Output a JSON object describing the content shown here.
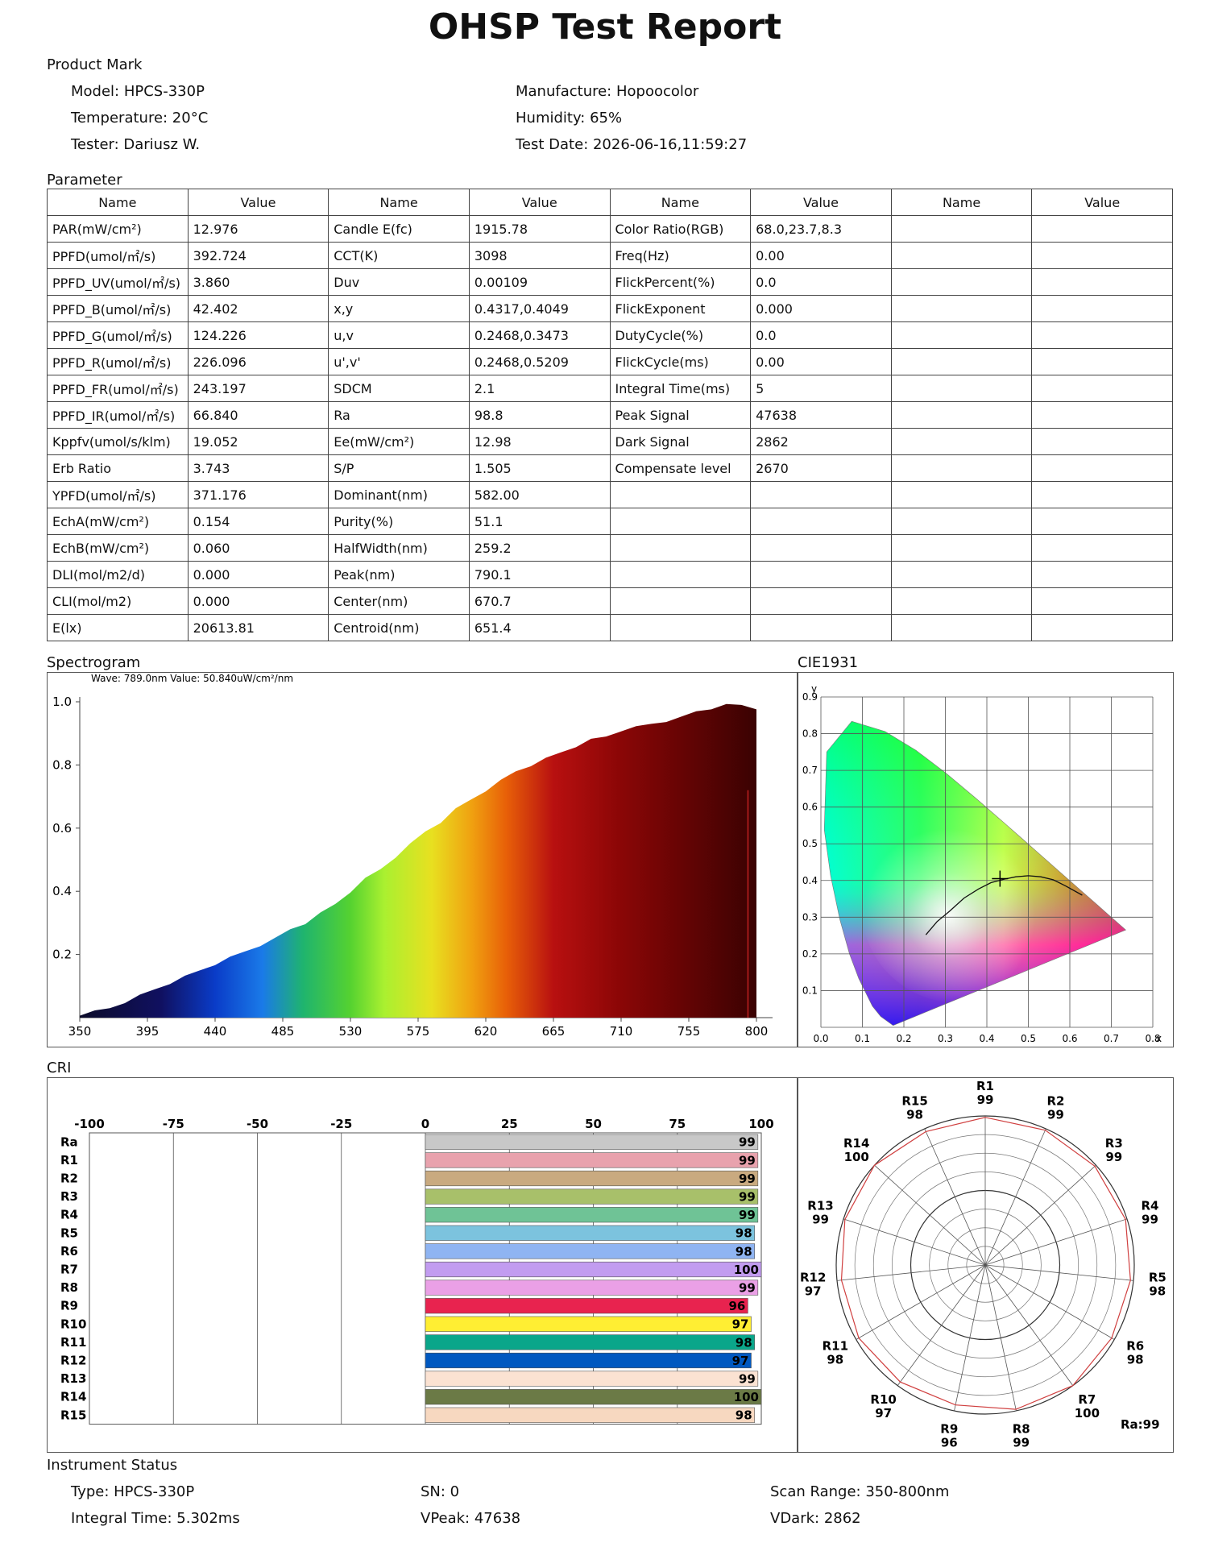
{
  "title": "OHSP Test Report",
  "product": {
    "heading": "Product Mark",
    "model": "Model: HPCS-330P",
    "manufacture": "Manufacture: Hopoocolor",
    "temperature": "Temperature: 20°C",
    "humidity": "Humidity: 65%",
    "tester": "Tester: Dariusz W.",
    "test_date": "Test Date: 2026-06-16,11:59:27"
  },
  "parameter": {
    "heading": "Parameter",
    "headers": [
      "Name",
      "Value",
      "Name",
      "Value",
      "Name",
      "Value",
      "Name",
      "Value"
    ],
    "rows": [
      [
        "PAR(mW/cm²)",
        "12.976",
        "Candle E(fc)",
        "1915.78",
        "Color Ratio(RGB)",
        "68.0,23.7,8.3",
        "",
        ""
      ],
      [
        "PPFD(umol/㎡/s)",
        "392.724",
        "CCT(K)",
        "3098",
        "Freq(Hz)",
        "0.00",
        "",
        ""
      ],
      [
        "PPFD_UV(umol/㎡/s)",
        "3.860",
        "Duv",
        "0.00109",
        "FlickPercent(%)",
        "0.0",
        "",
        ""
      ],
      [
        "PPFD_B(umol/㎡/s)",
        "42.402",
        "x,y",
        "0.4317,0.4049",
        "FlickExponent",
        "0.000",
        "",
        ""
      ],
      [
        "PPFD_G(umol/㎡/s)",
        "124.226",
        "u,v",
        "0.2468,0.3473",
        "DutyCycle(%)",
        "0.0",
        "",
        ""
      ],
      [
        "PPFD_R(umol/㎡/s)",
        "226.096",
        "u',v'",
        "0.2468,0.5209",
        "FlickCycle(ms)",
        "0.00",
        "",
        ""
      ],
      [
        "PPFD_FR(umol/㎡/s)",
        "243.197",
        "SDCM",
        "2.1",
        "Integral Time(ms)",
        "5",
        "",
        ""
      ],
      [
        "PPFD_IR(umol/㎡/s)",
        "66.840",
        "Ra",
        "98.8",
        "Peak Signal",
        "47638",
        "",
        ""
      ],
      [
        "Kppfv(umol/s/klm)",
        "19.052",
        "Ee(mW/cm²)",
        "12.98",
        "Dark Signal",
        "2862",
        "",
        ""
      ],
      [
        "Erb Ratio",
        "3.743",
        "S/P",
        "1.505",
        "Compensate level",
        "2670",
        "",
        ""
      ],
      [
        "YPFD(umol/㎡/s)",
        "371.176",
        "Dominant(nm)",
        "582.00",
        "",
        "",
        "",
        ""
      ],
      [
        "EchA(mW/cm²)",
        "0.154",
        "Purity(%)",
        "51.1",
        "",
        "",
        "",
        ""
      ],
      [
        "EchB(mW/cm²)",
        "0.060",
        "HalfWidth(nm)",
        "259.2",
        "",
        "",
        "",
        ""
      ],
      [
        "DLI(mol/m2/d)",
        "0.000",
        "Peak(nm)",
        "790.1",
        "",
        "",
        "",
        ""
      ],
      [
        "CLI(mol/m2)",
        "0.000",
        "Center(nm)",
        "670.7",
        "",
        "",
        "",
        ""
      ],
      [
        "E(lx)",
        "20613.81",
        "Centroid(nm)",
        "651.4",
        "",
        "",
        "",
        ""
      ]
    ]
  },
  "spectrogram": {
    "heading": "Spectrogram",
    "readout": "Wave: 789.0nm Value: 50.840uW/cm²/nm",
    "chart_data": {
      "type": "area",
      "xticks": [
        "350",
        "395",
        "440",
        "485",
        "530",
        "575",
        "620",
        "665",
        "710",
        "755",
        "800"
      ],
      "yticks": [
        "1.0",
        "0.8",
        "0.6",
        "0.4",
        "0.2"
      ],
      "xlim": [
        350,
        800
      ],
      "ylim": [
        0,
        1.0
      ],
      "x": [
        350,
        360,
        370,
        380,
        390,
        400,
        410,
        420,
        430,
        440,
        450,
        460,
        470,
        480,
        490,
        500,
        510,
        520,
        530,
        540,
        550,
        560,
        570,
        580,
        590,
        600,
        610,
        620,
        630,
        640,
        650,
        660,
        670,
        680,
        690,
        700,
        710,
        720,
        730,
        740,
        750,
        760,
        770,
        780,
        790,
        800
      ],
      "y": [
        0.01,
        0.02,
        0.03,
        0.05,
        0.07,
        0.09,
        0.11,
        0.13,
        0.15,
        0.17,
        0.19,
        0.21,
        0.23,
        0.25,
        0.28,
        0.3,
        0.33,
        0.36,
        0.4,
        0.44,
        0.47,
        0.51,
        0.55,
        0.59,
        0.62,
        0.66,
        0.69,
        0.72,
        0.75,
        0.78,
        0.8,
        0.82,
        0.84,
        0.86,
        0.88,
        0.89,
        0.91,
        0.92,
        0.93,
        0.94,
        0.95,
        0.97,
        0.98,
        0.99,
        0.99,
        0.98
      ],
      "marker_x": 789.0
    }
  },
  "cie": {
    "heading": "CIE1931",
    "chart_data": {
      "type": "scatter",
      "xlabel": "x",
      "ylabel": "y",
      "xticks": [
        "0.0",
        "0.1",
        "0.2",
        "0.3",
        "0.4",
        "0.5",
        "0.6",
        "0.7",
        "0.8"
      ],
      "yticks": [
        "0.9",
        "0.8",
        "0.7",
        "0.6",
        "0.5",
        "0.4",
        "0.3",
        "0.2",
        "0.1"
      ],
      "xlim": [
        0,
        0.8
      ],
      "ylim": [
        0,
        0.9
      ],
      "point": [
        0.4317,
        0.4049
      ]
    }
  },
  "cri": {
    "heading": "CRI",
    "chart_data": {
      "type": "bar",
      "xticks": [
        "-100",
        "-75",
        "-50",
        "-25",
        "0",
        "25",
        "50",
        "75",
        "100"
      ],
      "xlim": [
        -100,
        100
      ],
      "categories": [
        "Ra",
        "R1",
        "R2",
        "R3",
        "R4",
        "R5",
        "R6",
        "R7",
        "R8",
        "R9",
        "R10",
        "R11",
        "R12",
        "R13",
        "R14",
        "R15"
      ],
      "values": [
        99,
        99,
        99,
        99,
        99,
        98,
        98,
        100,
        99,
        96,
        97,
        98,
        97,
        99,
        100,
        98
      ],
      "colors": [
        "#c8c8c8",
        "#e8a2ad",
        "#c9aa80",
        "#a8c06a",
        "#6fc396",
        "#7cc3de",
        "#8fb4f2",
        "#c29cf0",
        "#eaa0e6",
        "#e8234f",
        "#ffee33",
        "#0aa68a",
        "#0058c0",
        "#fbe2d2",
        "#6b7a46",
        "#f7d8c0"
      ],
      "radar_label": "Ra:99"
    }
  },
  "instrument": {
    "heading": "Instrument Status",
    "type": "Type: HPCS-330P",
    "sn": "SN: 0",
    "scan_range": "Scan Range: 350-800nm",
    "integral_time": "Integral Time: 5.302ms",
    "vpeak": "VPeak: 47638",
    "vdark": "VDark: 2862"
  }
}
